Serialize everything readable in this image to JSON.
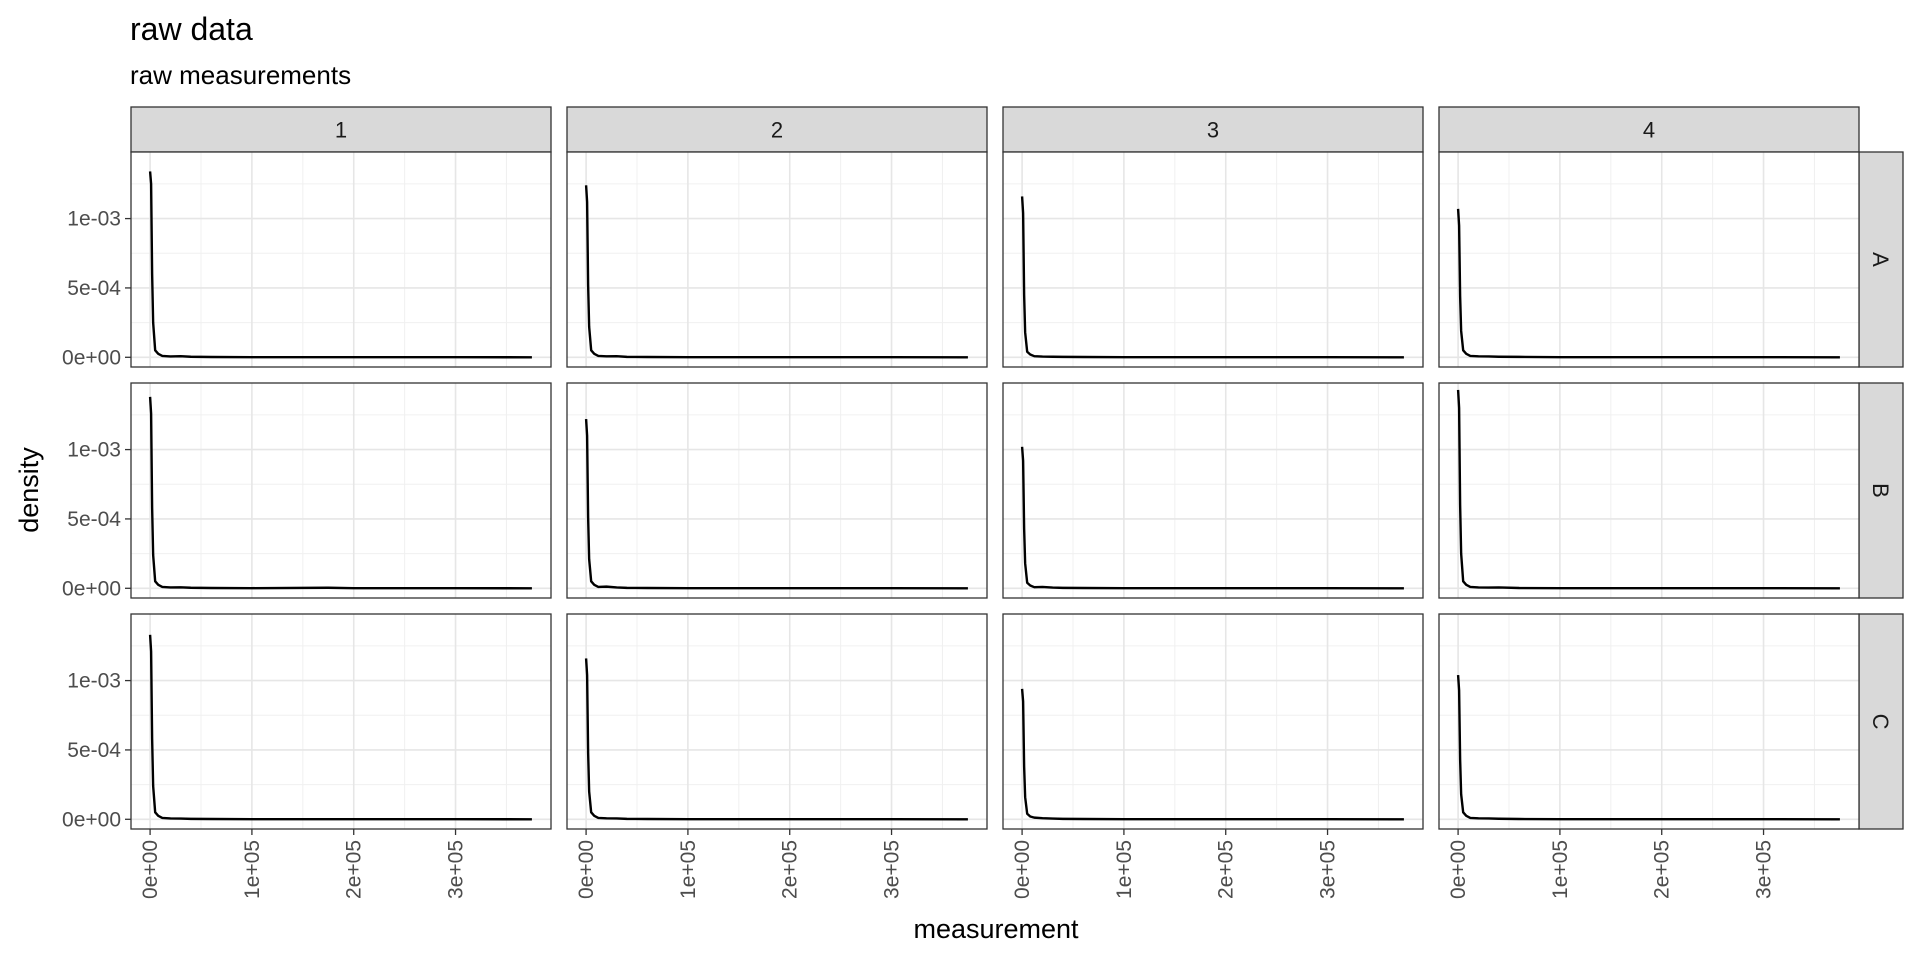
{
  "chart_data": {
    "type": "line",
    "title": "raw data",
    "subtitle": "raw measurements",
    "xlabel": "measurement",
    "ylabel": "density",
    "xlim": [
      -18750,
      393750
    ],
    "ylim": [
      -7e-05,
      0.00148
    ],
    "x_ticks": [
      0,
      100000,
      200000,
      300000
    ],
    "x_tick_labels": [
      "0e+00",
      "1e+05",
      "2e+05",
      "3e+05"
    ],
    "y_ticks": [
      0,
      0.0005,
      0.001
    ],
    "y_tick_labels": [
      "0e+00",
      "5e-04",
      "1e-03"
    ],
    "grid": true,
    "facet_cols": [
      "1",
      "2",
      "3",
      "4"
    ],
    "facet_rows": [
      "A",
      "B",
      "C"
    ],
    "line_color": "#000000",
    "panels": [
      {
        "row": "A",
        "col": "1",
        "x": [
          0,
          1000,
          2000,
          3000,
          5000,
          8000,
          12000,
          20000,
          30000,
          40000,
          60000,
          100000,
          200000,
          300000,
          375000
        ],
        "y": [
          0.00134,
          0.00125,
          0.0006,
          0.00025,
          5e-05,
          2.5e-05,
          1e-05,
          6e-06,
          8e-06,
          4e-06,
          2e-06,
          1e-06,
          1e-06,
          1e-06,
          0
        ]
      },
      {
        "row": "A",
        "col": "2",
        "x": [
          0,
          1000,
          2000,
          3000,
          5000,
          8000,
          12000,
          20000,
          30000,
          40000,
          60000,
          100000,
          200000,
          300000,
          375000
        ],
        "y": [
          0.00124,
          0.00112,
          0.00052,
          0.00022,
          5e-05,
          2.5e-05,
          1e-05,
          7e-06,
          8e-06,
          3e-06,
          2e-06,
          1e-06,
          1e-06,
          1e-06,
          0
        ]
      },
      {
        "row": "A",
        "col": "3",
        "x": [
          0,
          1000,
          2000,
          3000,
          5000,
          8000,
          12000,
          20000,
          30000,
          40000,
          60000,
          100000,
          200000,
          300000,
          375000
        ],
        "y": [
          0.00116,
          0.00104,
          0.00045,
          0.00018,
          4e-05,
          2e-05,
          8e-06,
          5e-06,
          4e-06,
          3e-06,
          2e-06,
          1e-06,
          1e-06,
          1e-06,
          0
        ]
      },
      {
        "row": "A",
        "col": "4",
        "x": [
          0,
          1000,
          2000,
          3000,
          5000,
          8000,
          12000,
          20000,
          30000,
          40000,
          60000,
          100000,
          200000,
          300000,
          375000
        ],
        "y": [
          0.00107,
          0.00095,
          0.00044,
          0.00019,
          5e-05,
          2.5e-05,
          1e-05,
          7e-06,
          6e-06,
          4e-06,
          3e-06,
          1e-06,
          1e-06,
          1e-06,
          0
        ]
      },
      {
        "row": "B",
        "col": "1",
        "x": [
          0,
          1000,
          2000,
          3000,
          5000,
          8000,
          12000,
          20000,
          30000,
          40000,
          60000,
          100000,
          175000,
          200000,
          300000,
          375000
        ],
        "y": [
          0.00138,
          0.00126,
          0.00058,
          0.00024,
          5e-05,
          2.5e-05,
          1e-05,
          6e-06,
          7e-06,
          4e-06,
          2e-06,
          1e-06,
          4e-06,
          1e-06,
          1e-06,
          0
        ]
      },
      {
        "row": "B",
        "col": "2",
        "x": [
          0,
          1000,
          2000,
          3000,
          5000,
          8000,
          12000,
          20000,
          30000,
          40000,
          60000,
          100000,
          200000,
          300000,
          375000
        ],
        "y": [
          0.00122,
          0.0011,
          0.00051,
          0.00021,
          5e-05,
          2.5e-05,
          1e-05,
          1.2e-05,
          6e-06,
          3e-06,
          2e-06,
          1e-06,
          1e-06,
          1e-06,
          0
        ]
      },
      {
        "row": "B",
        "col": "3",
        "x": [
          0,
          1000,
          2000,
          3000,
          5000,
          8000,
          12000,
          20000,
          30000,
          40000,
          60000,
          100000,
          200000,
          300000,
          375000
        ],
        "y": [
          0.00102,
          0.00092,
          0.00043,
          0.00018,
          4e-05,
          2e-05,
          8e-06,
          1e-05,
          5e-06,
          3e-06,
          2e-06,
          1e-06,
          1e-06,
          1e-06,
          0
        ]
      },
      {
        "row": "B",
        "col": "4",
        "x": [
          0,
          1000,
          2000,
          3000,
          5000,
          8000,
          12000,
          20000,
          30000,
          40000,
          60000,
          100000,
          200000,
          300000,
          375000
        ],
        "y": [
          0.00143,
          0.0013,
          0.0006,
          0.00025,
          5e-05,
          2.5e-05,
          1e-05,
          6e-06,
          5e-06,
          6e-06,
          2e-06,
          1e-06,
          1e-06,
          1e-06,
          0
        ]
      },
      {
        "row": "C",
        "col": "1",
        "x": [
          0,
          1000,
          2000,
          3000,
          5000,
          8000,
          12000,
          20000,
          30000,
          40000,
          60000,
          100000,
          200000,
          300000,
          375000
        ],
        "y": [
          0.00133,
          0.00121,
          0.00058,
          0.00024,
          5e-05,
          2.5e-05,
          1e-05,
          6e-06,
          5e-06,
          3e-06,
          2e-06,
          1e-06,
          1e-06,
          1e-06,
          0
        ]
      },
      {
        "row": "C",
        "col": "2",
        "x": [
          0,
          1000,
          2000,
          3000,
          5000,
          8000,
          12000,
          20000,
          30000,
          40000,
          60000,
          100000,
          200000,
          300000,
          375000
        ],
        "y": [
          0.00116,
          0.00104,
          0.00048,
          0.0002,
          5e-05,
          2.5e-05,
          1e-05,
          7e-06,
          6e-06,
          3e-06,
          2e-06,
          1e-06,
          1e-06,
          1e-06,
          0
        ]
      },
      {
        "row": "C",
        "col": "3",
        "x": [
          0,
          1000,
          2000,
          3000,
          5000,
          8000,
          12000,
          20000,
          30000,
          40000,
          60000,
          100000,
          200000,
          300000,
          375000
        ],
        "y": [
          0.00094,
          0.00085,
          0.00038,
          0.00016,
          4e-05,
          2e-05,
          1.2e-05,
          8e-06,
          5e-06,
          3e-06,
          2e-06,
          1e-06,
          1e-06,
          1e-06,
          0
        ]
      },
      {
        "row": "C",
        "col": "4",
        "x": [
          0,
          1000,
          2000,
          3000,
          5000,
          8000,
          12000,
          20000,
          30000,
          40000,
          60000,
          100000,
          200000,
          300000,
          375000
        ],
        "y": [
          0.00104,
          0.00093,
          0.00043,
          0.00018,
          5e-05,
          2.5e-05,
          1e-05,
          7e-06,
          6e-06,
          4e-06,
          2e-06,
          1e-06,
          1e-06,
          1e-06,
          0
        ]
      }
    ]
  }
}
